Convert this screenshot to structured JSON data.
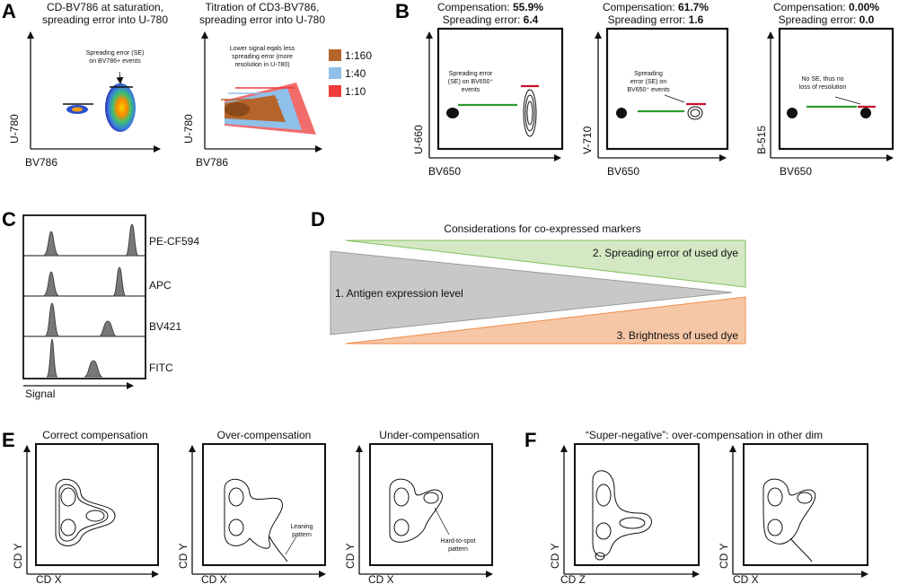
{
  "panels": {
    "A": {
      "letter": "A",
      "plot1": {
        "title_line1": "CD-BV786 at saturation,",
        "title_line2": "spreading error into U-780",
        "annotation_line1": "Spreading error (SE)",
        "annotation_line2": "on BV786+ events",
        "xlabel": "BV786",
        "ylabel": "U-780"
      },
      "plot2": {
        "title_line1": "Titration of CD3-BV786,",
        "title_line2": "spreading error into U-780",
        "annotation_line1": "Lower signal eqals less",
        "annotation_line2": "spreading error (more",
        "annotation_line3": "resolution in U-780)",
        "xlabel": "BV786",
        "ylabel": "U-780",
        "legend": [
          {
            "label": "1:160",
            "color": "#b5642a"
          },
          {
            "label": "1:40",
            "color": "#8fc0ea"
          },
          {
            "label": "1:10",
            "color": "#ee3b3b"
          }
        ]
      }
    },
    "B": {
      "letter": "B",
      "plots": [
        {
          "comp_label": "Compensation: ",
          "comp_value": "55.9%",
          "se_label": "Spreading error: ",
          "se_value": "6.4",
          "ann1": "Spreading error",
          "ann2": "(SE) on BV650⁺",
          "ann3": "events",
          "xlabel": "BV650",
          "ylabel": "U-660"
        },
        {
          "comp_label": "Compensation: ",
          "comp_value": "61.7%",
          "se_label": "Spreading error: ",
          "se_value": "1.6",
          "ann1": "Spreading",
          "ann2": "error (SE) on",
          "ann3": "BV650⁺ events",
          "xlabel": "BV650",
          "ylabel": "V-710"
        },
        {
          "comp_label": "Compensation: ",
          "comp_value": "0.00%",
          "se_label": "Spreading error: ",
          "se_value": "0.0",
          "ann1": "No SE, thus no",
          "ann2": "loss of resolution",
          "ann3": "",
          "xlabel": "BV650",
          "ylabel": "B-515"
        }
      ]
    },
    "C": {
      "letter": "C",
      "markers": [
        "PE-CF594",
        "APC",
        "BV421",
        "FITC"
      ],
      "xlabel": "Signal"
    },
    "D": {
      "letter": "D",
      "title": "Considerations for co-expressed markers",
      "item1": "1. Antigen expression level",
      "item2": "2. Spreading error of used dye",
      "item3": "3. Brightness of used dye",
      "colors": {
        "green": "#d5e8c4",
        "gray": "#c8c8c8",
        "orange": "#f6c7a6"
      }
    },
    "E": {
      "letter": "E",
      "plots": [
        {
          "title": "Correct compensation",
          "xlabel": "CD X",
          "ylabel": "CD Y",
          "ann1": "",
          "ann2": ""
        },
        {
          "title": "Over-compensation",
          "xlabel": "CD X",
          "ylabel": "CD Y",
          "ann1": "Leaning",
          "ann2": "pattern"
        },
        {
          "title": "Under-compensation",
          "xlabel": "CD X",
          "ylabel": "CD Y",
          "ann1": "Hard-to-spot",
          "ann2": "pattern"
        }
      ]
    },
    "F": {
      "letter": "F",
      "title": "“Super-negative”: over-compensation in other dim",
      "plots": [
        {
          "xlabel": "CD Z",
          "ylabel": "CD Y"
        },
        {
          "xlabel": "CD X",
          "ylabel": "CD Y"
        }
      ]
    }
  }
}
